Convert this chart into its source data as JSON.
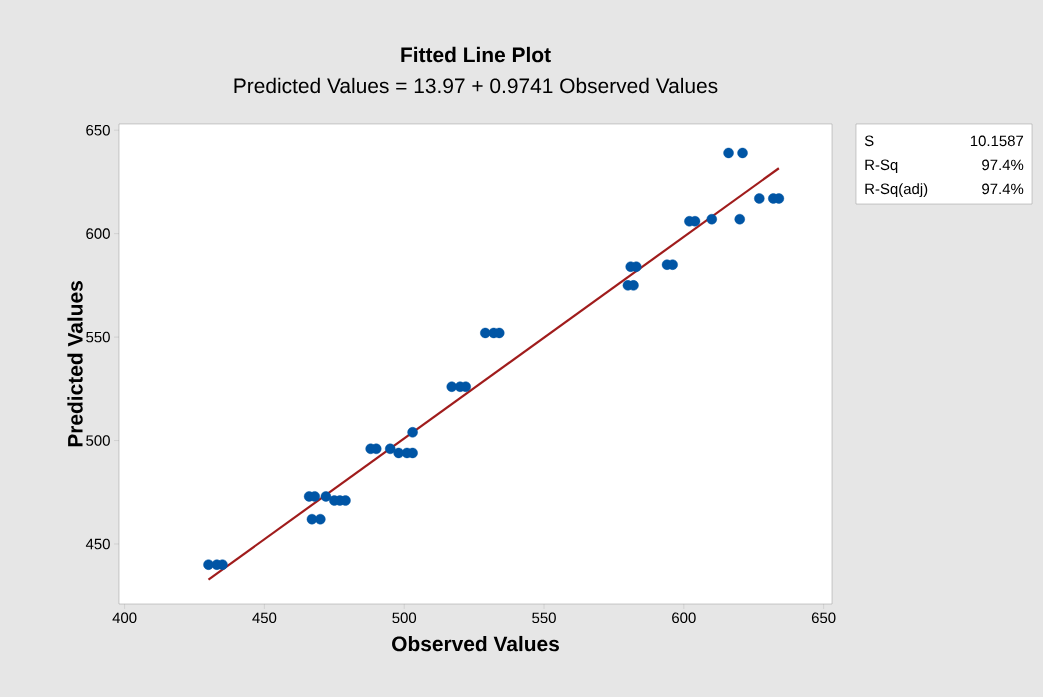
{
  "chart_data": {
    "type": "scatter",
    "title": "Fitted Line Plot",
    "subtitle": "Predicted Values = 13.97 + 0.9741 Observed Values",
    "xlabel": "Observed Values",
    "ylabel": "Predicted Values",
    "xlim": [
      398,
      653
    ],
    "ylim": [
      421,
      653
    ],
    "xticks": [
      400,
      450,
      500,
      550,
      600,
      650
    ],
    "yticks": [
      450,
      500,
      550,
      600,
      650
    ],
    "grid": false,
    "marker": "circle",
    "series": [
      {
        "color": "#0055a5",
        "x": [
          430,
          433,
          435,
          466,
          468,
          472,
          467,
          470,
          475,
          477,
          479,
          488,
          490,
          495,
          498,
          501,
          503,
          503,
          517,
          520,
          522,
          529,
          532,
          534,
          581,
          583,
          580,
          582,
          594,
          596,
          602,
          604,
          610,
          620,
          616,
          621,
          627,
          632,
          634
        ],
        "values": [
          440,
          440,
          440,
          473,
          473,
          473,
          462,
          462,
          471,
          471,
          471,
          496,
          496,
          496,
          494,
          494,
          494,
          504,
          526,
          526,
          526,
          552,
          552,
          552,
          584,
          584,
          575,
          575,
          585,
          585,
          606,
          606,
          607,
          607,
          639,
          639,
          617,
          617,
          617
        ]
      },
      {
        "type": "line",
        "color": "#a01c1c",
        "marker": "none",
        "x": [
          430,
          634
        ],
        "values": [
          432.8,
          631.6
        ]
      }
    ],
    "annotations": [
      "S",
      "10.1587",
      "R-Sq",
      "97.4%",
      "R-Sq(adj)",
      "97.4%"
    ]
  }
}
